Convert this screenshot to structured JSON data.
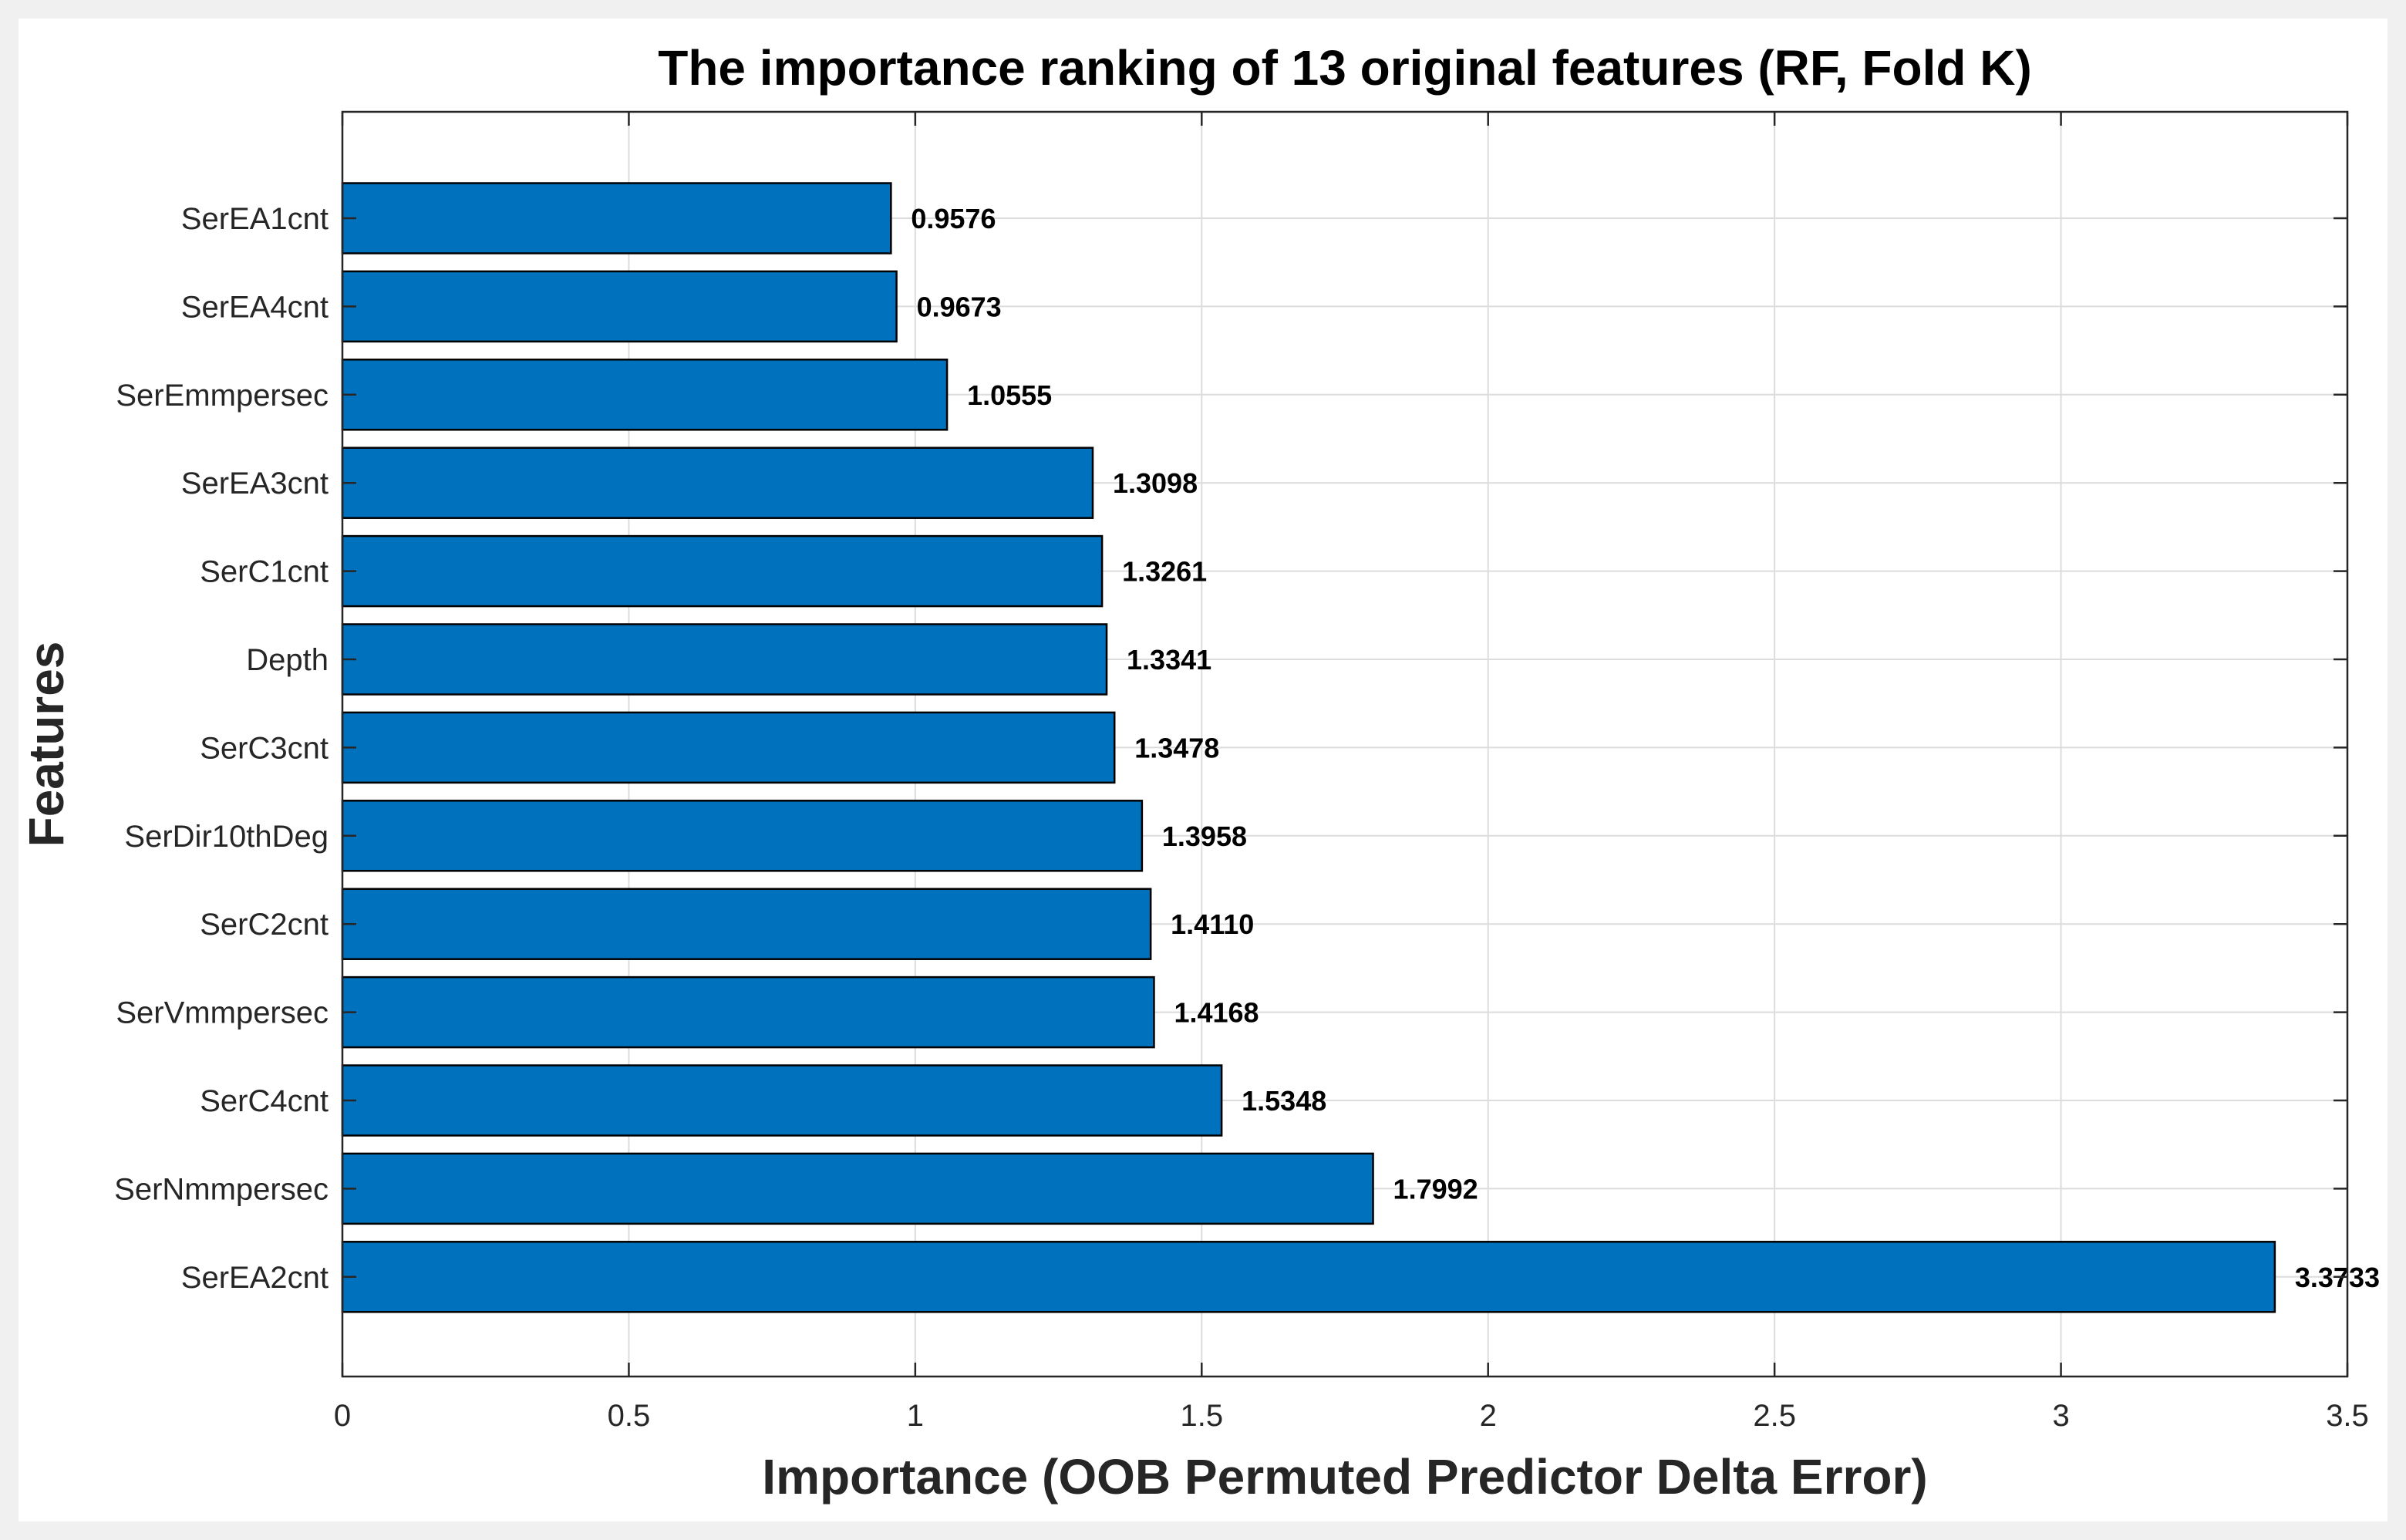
{
  "chart_data": {
    "type": "bar",
    "orientation": "horizontal",
    "title": "The importance ranking of 13 original features (RF, Fold K)",
    "xlabel": "Importance (OOB Permuted Predictor Delta Error)",
    "ylabel": "Features",
    "xlim": [
      0,
      3.5
    ],
    "xticks": [
      "0",
      "0.5",
      "1",
      "1.5",
      "2",
      "2.5",
      "3",
      "3.5"
    ],
    "grid": true,
    "bar_color": "#0072bd",
    "categories": [
      "SerEA1cnt",
      "SerEA4cnt",
      "SerEmmpersec",
      "SerEA3cnt",
      "SerC1cnt",
      "Depth",
      "SerC3cnt",
      "SerDir10thDeg",
      "SerC2cnt",
      "SerVmmpersec",
      "SerC4cnt",
      "SerNmmpersec",
      "SerEA2cnt"
    ],
    "values": [
      0.9576,
      0.9673,
      1.0555,
      1.3098,
      1.3261,
      1.3341,
      1.3478,
      1.3958,
      1.411,
      1.4168,
      1.5348,
      1.7992,
      3.3733
    ],
    "value_labels": [
      "0.9576",
      "0.9673",
      "1.0555",
      "1.3098",
      "1.3261",
      "1.3341",
      "1.3478",
      "1.3958",
      "1.4110",
      "1.4168",
      "1.5348",
      "1.7992",
      "3.3733"
    ]
  }
}
